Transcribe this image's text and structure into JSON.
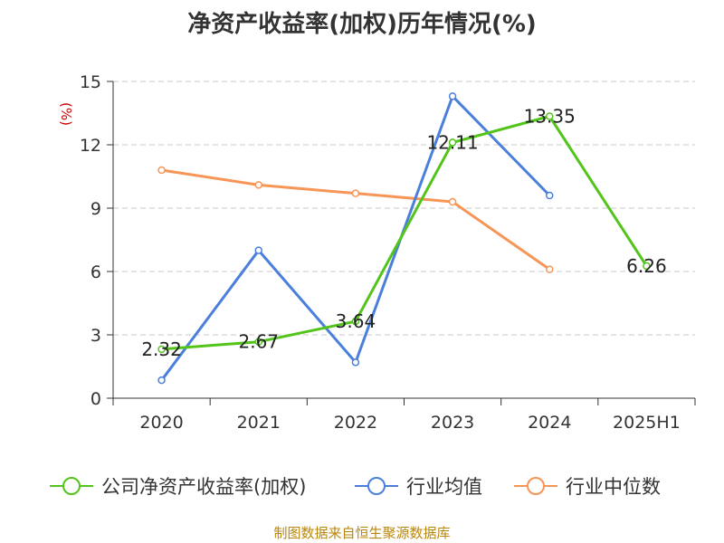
{
  "chart_data": {
    "type": "line",
    "title": "净资产收益率(加权)历年情况(%)",
    "ylabel": "(%)",
    "xlabel": "",
    "categories": [
      "2020",
      "2021",
      "2022",
      "2023",
      "2024",
      "2025H1"
    ],
    "ylim": [
      0,
      15
    ],
    "yticks": [
      0,
      3,
      6,
      9,
      12,
      15
    ],
    "grid": true,
    "legend_position": "bottom",
    "series": [
      {
        "name": "公司净资产收益率(加权)",
        "color": "#52c41a",
        "values": [
          2.32,
          2.67,
          3.64,
          12.11,
          13.35,
          6.26
        ],
        "labels": [
          "2.32",
          "2.67",
          "3.64",
          "12.11",
          "13.35",
          "6.26"
        ]
      },
      {
        "name": "行业均值",
        "color": "#4a7fdc",
        "values": [
          0.85,
          7.0,
          1.7,
          14.3,
          9.6,
          null
        ]
      },
      {
        "name": "行业中位数",
        "color": "#f79556",
        "values": [
          10.8,
          10.1,
          9.7,
          9.3,
          6.1,
          null
        ]
      }
    ],
    "ylabel_color": "#cc0000"
  },
  "source": "制图数据来自恒生聚源数据库"
}
